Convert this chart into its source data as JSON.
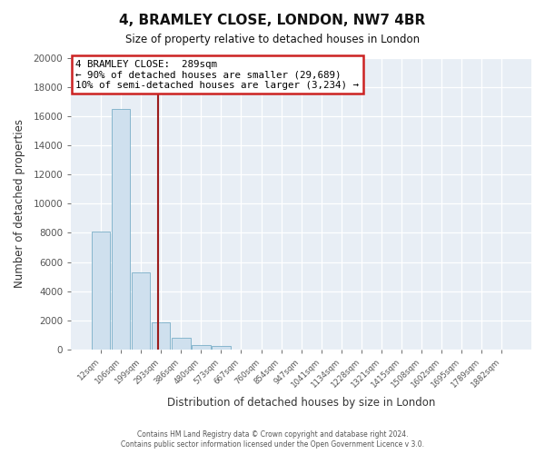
{
  "title": "4, BRAMLEY CLOSE, LONDON, NW7 4BR",
  "subtitle": "Size of property relative to detached houses in London",
  "xlabel": "Distribution of detached houses by size in London",
  "ylabel": "Number of detached properties",
  "bar_labels": [
    "12sqm",
    "106sqm",
    "199sqm",
    "293sqm",
    "386sqm",
    "480sqm",
    "573sqm",
    "667sqm",
    "760sqm",
    "854sqm",
    "947sqm",
    "1041sqm",
    "1134sqm",
    "1228sqm",
    "1321sqm",
    "1415sqm",
    "1508sqm",
    "1602sqm",
    "1695sqm",
    "1789sqm",
    "1882sqm"
  ],
  "bar_values": [
    8100,
    16500,
    5300,
    1850,
    800,
    320,
    220,
    0,
    0,
    0,
    0,
    0,
    0,
    0,
    0,
    0,
    0,
    0,
    0,
    0,
    0
  ],
  "bar_color": "#cfe0ee",
  "bar_edge_color": "#7aafc8",
  "vline_x": 2.86,
  "vline_color": "#9b1c1c",
  "ylim": [
    0,
    20000
  ],
  "yticks": [
    0,
    2000,
    4000,
    6000,
    8000,
    10000,
    12000,
    14000,
    16000,
    18000,
    20000
  ],
  "annotation_title": "4 BRAMLEY CLOSE:  289sqm",
  "annotation_line1": "← 90% of detached houses are smaller (29,689)",
  "annotation_line2": "10% of semi-detached houses are larger (3,234) →",
  "annotation_box_facecolor": "#ffffff",
  "annotation_box_edgecolor": "#cc2222",
  "footer1": "Contains HM Land Registry data © Crown copyright and database right 2024.",
  "footer2": "Contains public sector information licensed under the Open Government Licence v 3.0.",
  "fig_bg_color": "#ffffff",
  "plot_bg_color": "#e8eef5",
  "grid_color": "#ffffff",
  "tick_color": "#555555",
  "label_color": "#333333"
}
